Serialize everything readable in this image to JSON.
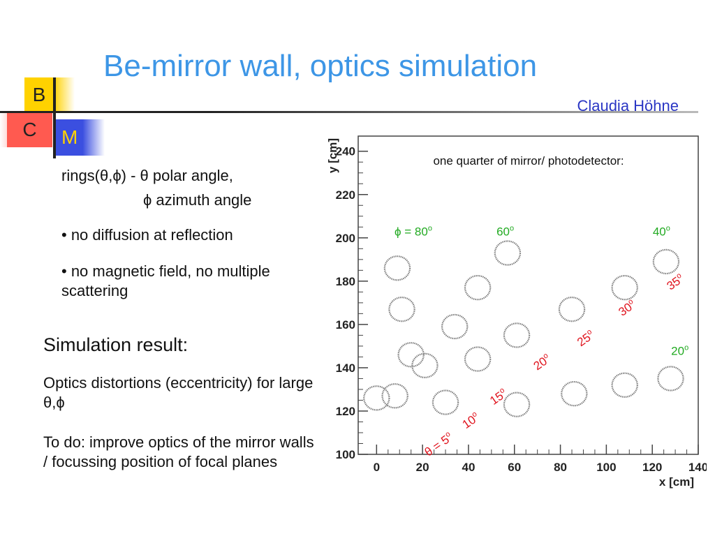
{
  "header": {
    "title": "Be-mirror wall, optics simulation",
    "author": "Claudia Höhne"
  },
  "logo": {
    "b": "B",
    "c": "C",
    "m": "M"
  },
  "body": {
    "line1": "rings(θ,ϕ) - θ polar angle,",
    "line2": "ϕ azimuth angle",
    "bullet1": "• no diffusion at reflection",
    "bullet2": "• no magnetic field, no multiple scattering",
    "result_heading": "Simulation result:",
    "result_text": "Optics distortions (eccentricity) for large θ,ϕ",
    "todo_text": "To do: improve optics of the mirror walls / focussing position of focal planes"
  },
  "colors": {
    "title": "#3d96e6",
    "author": "#2a36c4",
    "green": "#22aa22",
    "red": "#e0141e"
  },
  "chart_data": {
    "type": "scatter",
    "title": "one quarter of mirror/ photodetector:",
    "xlabel": "x [cm]",
    "ylabel": "y [cm]",
    "xlim": [
      -8,
      140
    ],
    "ylim": [
      100,
      247
    ],
    "xticks": [
      "0",
      "20",
      "40",
      "60",
      "80",
      "100",
      "120",
      "140"
    ],
    "yticks": [
      "100",
      "120",
      "140",
      "160",
      "180",
      "200",
      "220",
      "240"
    ],
    "xtick_values": [
      0,
      20,
      40,
      60,
      80,
      100,
      120,
      140
    ],
    "ytick_values": [
      100,
      120,
      140,
      160,
      180,
      200,
      220,
      240
    ],
    "ring_radius": 5.5,
    "rings": [
      {
        "x": 0,
        "y": 126
      },
      {
        "x": 8,
        "y": 127
      },
      {
        "x": 15,
        "y": 146
      },
      {
        "x": 21,
        "y": 141
      },
      {
        "x": 30,
        "y": 124
      },
      {
        "x": 57,
        "y": 193
      },
      {
        "x": 9,
        "y": 186
      },
      {
        "x": 11,
        "y": 167
      },
      {
        "x": 34,
        "y": 159
      },
      {
        "x": 44,
        "y": 177
      },
      {
        "x": 44,
        "y": 144
      },
      {
        "x": 61,
        "y": 155
      },
      {
        "x": 61,
        "y": 123
      },
      {
        "x": 85,
        "y": 167
      },
      {
        "x": 86,
        "y": 128
      },
      {
        "x": 108,
        "y": 177
      },
      {
        "x": 108,
        "y": 132
      },
      {
        "x": 126,
        "y": 189
      },
      {
        "x": 128,
        "y": 135
      }
    ],
    "annotations": [
      {
        "text": "ϕ = 80",
        "sup": "o",
        "x": 16,
        "y": 201,
        "color": "green",
        "rotate": 0
      },
      {
        "text": "60",
        "sup": "o",
        "x": 56,
        "y": 201,
        "color": "green",
        "rotate": 0
      },
      {
        "text": "40",
        "sup": "o",
        "x": 124,
        "y": 201,
        "color": "green",
        "rotate": 0
      },
      {
        "text": "20",
        "sup": "o",
        "x": 132,
        "y": 146,
        "color": "green",
        "rotate": 0
      },
      {
        "text": "θ = 5",
        "sup": "o",
        "x": 28,
        "y": 103,
        "color": "red",
        "rotate": -35
      },
      {
        "text": "10",
        "sup": "o",
        "x": 42,
        "y": 114,
        "color": "red",
        "rotate": -35
      },
      {
        "text": "15",
        "sup": "o",
        "x": 54,
        "y": 125,
        "color": "red",
        "rotate": -35
      },
      {
        "text": "20",
        "sup": "o",
        "x": 73,
        "y": 141,
        "color": "red",
        "rotate": -35
      },
      {
        "text": "25",
        "sup": "o",
        "x": 92,
        "y": 152,
        "color": "red",
        "rotate": -35
      },
      {
        "text": "30",
        "sup": "o",
        "x": 110,
        "y": 166,
        "color": "red",
        "rotate": -35
      },
      {
        "text": "35",
        "sup": "o",
        "x": 131,
        "y": 178,
        "color": "red",
        "rotate": -35
      }
    ]
  }
}
